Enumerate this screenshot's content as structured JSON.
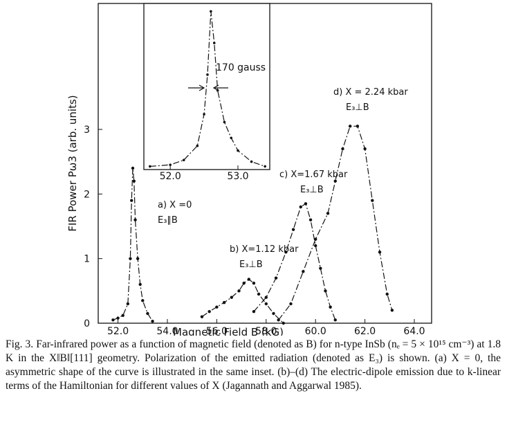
{
  "chart_data": [
    {
      "type": "line",
      "xlabel": "Magnetic Field B (kG)",
      "ylabel": "FIR Power Pω3 (arb. units)",
      "xlim": [
        51.2,
        64.7
      ],
      "ylim": [
        0,
        4.95
      ],
      "xticks": [
        {
          "value": 52,
          "label": "52.0"
        },
        {
          "value": 54,
          "label": "54.0"
        },
        {
          "value": 56,
          "label": "56.0"
        },
        {
          "value": 58,
          "label": "58.0"
        },
        {
          "value": 60,
          "label": "60.0"
        },
        {
          "value": 62,
          "label": "62.0"
        },
        {
          "value": 64,
          "label": "64.0"
        }
      ],
      "yticks": [
        0,
        1,
        2,
        3
      ],
      "series": [
        {
          "name": "a) X =0",
          "polarization": "E₃∥B",
          "color": "#111111",
          "x": [
            51.8,
            52.0,
            52.2,
            52.4,
            52.5,
            52.55,
            52.6,
            52.65,
            52.7,
            52.8,
            52.9,
            53.0,
            53.2,
            53.4
          ],
          "values": [
            0.05,
            0.08,
            0.12,
            0.3,
            1.0,
            1.9,
            2.4,
            2.2,
            1.6,
            1.0,
            0.6,
            0.35,
            0.15,
            0.03
          ]
        },
        {
          "name": "b) X=1.12 kbar",
          "polarization": "E₃⊥B",
          "color": "#111111",
          "x": [
            55.4,
            55.7,
            56.0,
            56.3,
            56.6,
            56.9,
            57.1,
            57.3,
            57.5,
            57.7,
            58.0,
            58.3,
            58.7
          ],
          "values": [
            0.1,
            0.18,
            0.25,
            0.32,
            0.4,
            0.5,
            0.62,
            0.68,
            0.62,
            0.45,
            0.3,
            0.15,
            0.0
          ]
        },
        {
          "name": "c) X=1.67 kbar",
          "polarization": "E₃⊥B",
          "color": "#111111",
          "x": [
            57.5,
            58.0,
            58.4,
            58.8,
            59.1,
            59.4,
            59.6,
            59.8,
            60.0,
            60.2,
            60.4,
            60.6,
            60.8
          ],
          "values": [
            0.18,
            0.4,
            0.7,
            1.1,
            1.45,
            1.8,
            1.85,
            1.6,
            1.2,
            0.85,
            0.5,
            0.25,
            0.05
          ]
        },
        {
          "name": "d) X = 2.24 kbar",
          "polarization": "E₃⊥B",
          "color": "#111111",
          "x": [
            58.5,
            59.0,
            59.5,
            60.0,
            60.5,
            60.8,
            61.1,
            61.4,
            61.7,
            62.0,
            62.3,
            62.6,
            62.9,
            63.1
          ],
          "values": [
            0.05,
            0.3,
            0.8,
            1.3,
            1.7,
            2.2,
            2.7,
            3.05,
            3.05,
            2.7,
            1.9,
            1.1,
            0.45,
            0.2
          ]
        }
      ]
    },
    {
      "type": "line",
      "annotation": "170 gauss",
      "xlim": [
        51.61,
        53.47
      ],
      "ylim": [
        0,
        1.05
      ],
      "xticks": [
        {
          "value": 52,
          "label": "52.0"
        },
        {
          "value": 53,
          "label": "53.0"
        }
      ],
      "series": [
        {
          "color": "#111111",
          "x": [
            51.7,
            52.0,
            52.2,
            52.4,
            52.5,
            52.55,
            52.6,
            52.65,
            52.7,
            52.8,
            52.9,
            53.0,
            53.2,
            53.4
          ],
          "values": [
            0.02,
            0.03,
            0.06,
            0.15,
            0.35,
            0.6,
            1.0,
            0.8,
            0.5,
            0.3,
            0.2,
            0.12,
            0.05,
            0.02
          ]
        }
      ]
    }
  ],
  "caption": "Fig. 3. Far-infrared power as a function of magnetic field (denoted as B) for n-type InSb (nₑ = 5 × 10¹⁵ cm⁻³) at 1.8 K in the X‖B‖[111] geometry. Polarization of the emitted radiation (denoted as E₃) is shown. (a) X = 0, the asymmetric shape of the curve is illustrated in the same inset. (b)–(d) The electric-dipole emission due to k-linear terms of the Hamiltonian for different values of X (Jagannath and Aggarwal 1985)."
}
